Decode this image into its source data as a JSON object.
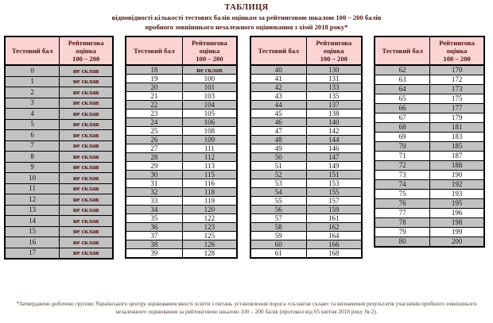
{
  "title": {
    "line1": "ТАБЛИЦЯ",
    "line2": "відповідності кількості тестових балів оцінкам за рейтинговою шкалою  100 – 200 балів",
    "line3": "пробного зовнішнього незалежного оцінювання з хімії 2018 року*"
  },
  "column_headers": {
    "test_score": "Тестовий бал",
    "rating": "Рейтингова\nоцінка\n100 – 200"
  },
  "fail_label": "не склав",
  "tables": [
    {
      "rows": [
        [
          "0",
          "не склав"
        ],
        [
          "1",
          "не склав"
        ],
        [
          "2",
          "не склав"
        ],
        [
          "3",
          "не склав"
        ],
        [
          "4",
          "не склав"
        ],
        [
          "5",
          "не склав"
        ],
        [
          "6",
          "не склав"
        ],
        [
          "7",
          "не склав"
        ],
        [
          "8",
          "не склав"
        ],
        [
          "9",
          "не склав"
        ],
        [
          "10",
          "не склав"
        ],
        [
          "11",
          "не склав"
        ],
        [
          "12",
          "не склав"
        ],
        [
          "13",
          "не склав"
        ],
        [
          "14",
          "не склав"
        ],
        [
          "15",
          "не склав"
        ],
        [
          "16",
          "не склав"
        ],
        [
          "17",
          "не склав"
        ]
      ]
    },
    {
      "rows": [
        [
          "18",
          "не склав"
        ],
        [
          "19",
          "100"
        ],
        [
          "20",
          "101"
        ],
        [
          "21",
          "103"
        ],
        [
          "22",
          "104"
        ],
        [
          "23",
          "105"
        ],
        [
          "24",
          "106"
        ],
        [
          "25",
          "108"
        ],
        [
          "26",
          "109"
        ],
        [
          "27",
          "111"
        ],
        [
          "28",
          "112"
        ],
        [
          "29",
          "113"
        ],
        [
          "30",
          "115"
        ],
        [
          "31",
          "116"
        ],
        [
          "32",
          "118"
        ],
        [
          "33",
          "119"
        ],
        [
          "34",
          "120"
        ],
        [
          "35",
          "122"
        ],
        [
          "36",
          "123"
        ],
        [
          "37",
          "125"
        ],
        [
          "38",
          "126"
        ],
        [
          "39",
          "128"
        ]
      ]
    },
    {
      "rows": [
        [
          "40",
          "130"
        ],
        [
          "41",
          "131"
        ],
        [
          "42",
          "133"
        ],
        [
          "43",
          "135"
        ],
        [
          "44",
          "137"
        ],
        [
          "45",
          "138"
        ],
        [
          "46",
          "140"
        ],
        [
          "47",
          "142"
        ],
        [
          "48",
          "144"
        ],
        [
          "49",
          "146"
        ],
        [
          "50",
          "147"
        ],
        [
          "51",
          "149"
        ],
        [
          "52",
          "151"
        ],
        [
          "53",
          "153"
        ],
        [
          "54",
          "155"
        ],
        [
          "55",
          "157"
        ],
        [
          "56",
          "159"
        ],
        [
          "57",
          "161"
        ],
        [
          "58",
          "162"
        ],
        [
          "59",
          "164"
        ],
        [
          "60",
          "166"
        ],
        [
          "61",
          "168"
        ]
      ]
    },
    {
      "rows": [
        [
          "62",
          "170"
        ],
        [
          "63",
          "172"
        ],
        [
          "64",
          "173"
        ],
        [
          "65",
          "175"
        ],
        [
          "66",
          "177"
        ],
        [
          "67",
          "179"
        ],
        [
          "68",
          "181"
        ],
        [
          "69",
          "183"
        ],
        [
          "70",
          "185"
        ],
        [
          "71",
          "187"
        ],
        [
          "72",
          "188"
        ],
        [
          "73",
          "190"
        ],
        [
          "74",
          "192"
        ],
        [
          "75",
          "193"
        ],
        [
          "76",
          "195"
        ],
        [
          "77",
          "196"
        ],
        [
          "78",
          "198"
        ],
        [
          "79",
          "199"
        ],
        [
          "80",
          "200"
        ]
      ]
    }
  ],
  "footnote": "*Затверджено робочою групою Українського центру оцінювання якості освіти з питань установлення порога «склав/не склав» та визначення результатів учасників пробного зовнішнього незалежного оцінювання за рейтинговою шкалою 100 – 200 балів (протокол від 05 квітня 2018 року № 2).",
  "colors": {
    "header_bg": "#FBD3D3",
    "shaded_row_bg": "#C2C2C2",
    "heading_text": "#4C1410",
    "fail_text": "#4C1410",
    "number_text": "#14141A",
    "border": "#000000",
    "footnote_text": "#513A2F",
    "page_bg": "#FFFFFF"
  }
}
